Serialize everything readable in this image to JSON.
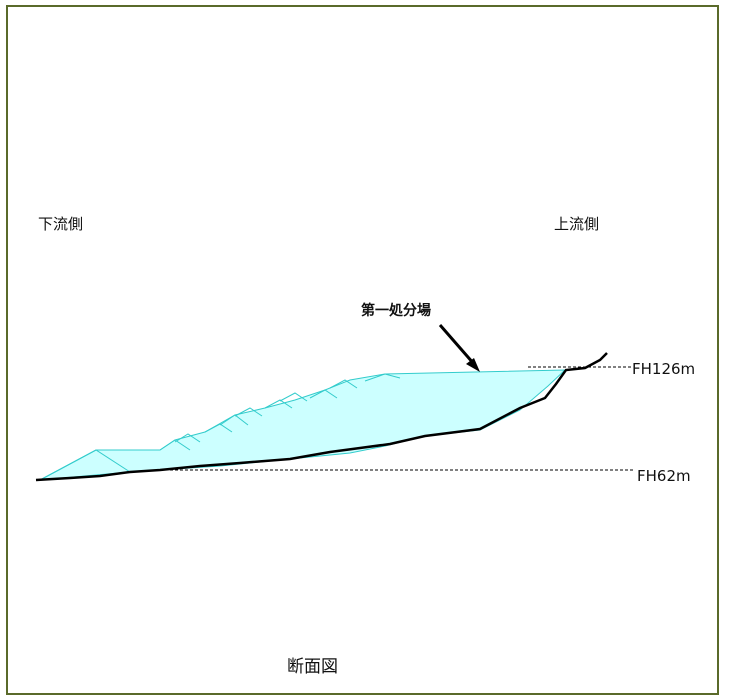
{
  "labels": {
    "downstream": "下流側",
    "upstream": "上流側",
    "facility": "第一処分場",
    "level_high": "FH126m",
    "level_low": "FH62m",
    "caption": "断面図"
  },
  "colors": {
    "fill": "#ccffff",
    "fill_stroke": "#33cccc",
    "terrain": "#000000",
    "frame": "#5a6a2a"
  }
}
